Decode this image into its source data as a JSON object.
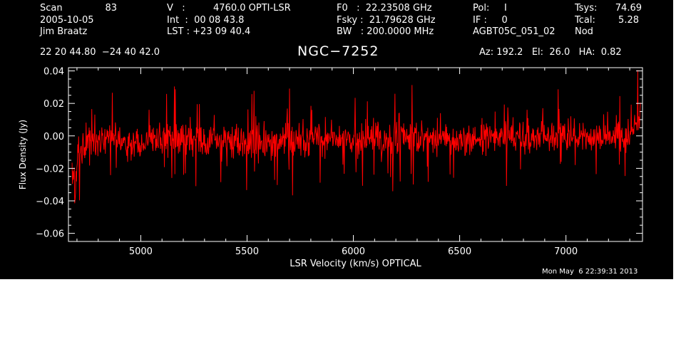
{
  "header": {
    "row1": {
      "scan_label": "Scan",
      "scan_value": "83",
      "v_label": "V   :",
      "v_value": "4760.0 OPTI-LSR",
      "f0": "F0   :  22.23508 GHz",
      "pol": "Pol:     I",
      "tsys_label": "Tsys:",
      "tsys_value": "74.69"
    },
    "row2": {
      "date": "2005-10-05",
      "int": "Int  :  00 08 43.8",
      "fsky": "Fsky :  21.79628 GHz",
      "if": "IF :     0",
      "tcal_label": "Tcal:",
      "tcal_value": "5.28"
    },
    "row3": {
      "observer": "Jim Braatz",
      "lst": "LST : +23 09 40.4",
      "bw": "BW   : 200.0000 MHz",
      "project": "AGBT05C_051_02",
      "proc": "Nod"
    },
    "coordinates": "22 20 44.80  −24 40 42.0",
    "source": "NGC−7252",
    "pointing": "Az: 192.2   El:  26.0   HA:  0.82"
  },
  "timestamp": "Mon May  6 22:39:31 2013",
  "chart_data": {
    "type": "line",
    "title": "NGC−7252",
    "xlabel": "LSR Velocity (km/s) OPTICAL",
    "ylabel": "Flux Density (Jy)",
    "xlim": [
      4660,
      7360
    ],
    "ylim": [
      -0.065,
      0.042
    ],
    "xticks": [
      5000,
      5500,
      6000,
      6500,
      7000
    ],
    "xtick_labels": [
      "5000",
      "5500",
      "6000",
      "6500",
      "7000"
    ],
    "yticks": [
      -0.06,
      -0.04,
      -0.02,
      0.0,
      0.02,
      0.04
    ],
    "ytick_labels": [
      "−0.06",
      "−0.04",
      "−0.02",
      "0.00",
      "0.02",
      "0.04"
    ],
    "x_minor_step": 100,
    "y_minor_step": 0.005,
    "grid": false,
    "series": [
      {
        "color": "#ff0000",
        "x_start": 4677,
        "x_end": 7350,
        "points": 1300,
        "envelope_x": [
          4677,
          4690,
          4710,
          4750,
          5000,
          5500,
          6000,
          6500,
          7000,
          7300,
          7340,
          7350
        ],
        "envelope_mean": [
          -0.012,
          -0.022,
          -0.012,
          -0.004,
          -0.003,
          -0.003,
          -0.001,
          -0.002,
          0.0,
          -0.001,
          0.01,
          0.02
        ],
        "noise_sigma": 0.0095
      }
    ]
  }
}
